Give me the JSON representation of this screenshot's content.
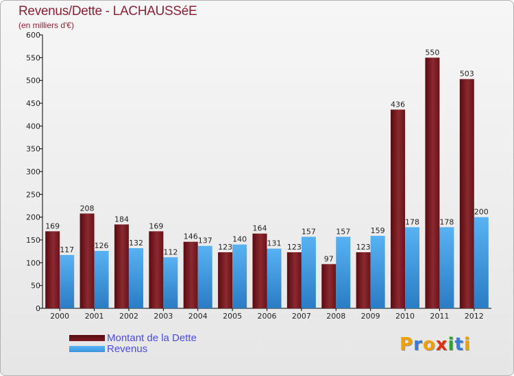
{
  "title": "Revenus/Dette - LACHAUSSéE",
  "subtitle": "(en milliers d'€)",
  "logo_text": "Proxiti",
  "logo_colors": [
    "#f0a000",
    "#3a7ad8",
    "#f0a000",
    "#e03010",
    "#30a030",
    "#3a7ad8",
    "#f0a000"
  ],
  "chart_data": {
    "type": "bar",
    "categories": [
      "2000",
      "2001",
      "2002",
      "2003",
      "2004",
      "2005",
      "2006",
      "2007",
      "2008",
      "2009",
      "2010",
      "2011",
      "2012"
    ],
    "series": [
      {
        "name": "Montant de la Dette",
        "color": "#7a1a22",
        "values": [
          169,
          208,
          184,
          169,
          146,
          123,
          164,
          123,
          97,
          123,
          436,
          550,
          503
        ]
      },
      {
        "name": "Revenus",
        "color": "#3a95dd",
        "values": [
          117,
          126,
          132,
          112,
          137,
          140,
          131,
          157,
          157,
          159,
          178,
          178,
          200
        ]
      }
    ],
    "ylim": [
      0,
      600
    ],
    "yticks": [
      0,
      50,
      100,
      150,
      200,
      250,
      300,
      350,
      400,
      450,
      500,
      550,
      600
    ],
    "grid": false,
    "legend": "bottom-left"
  }
}
